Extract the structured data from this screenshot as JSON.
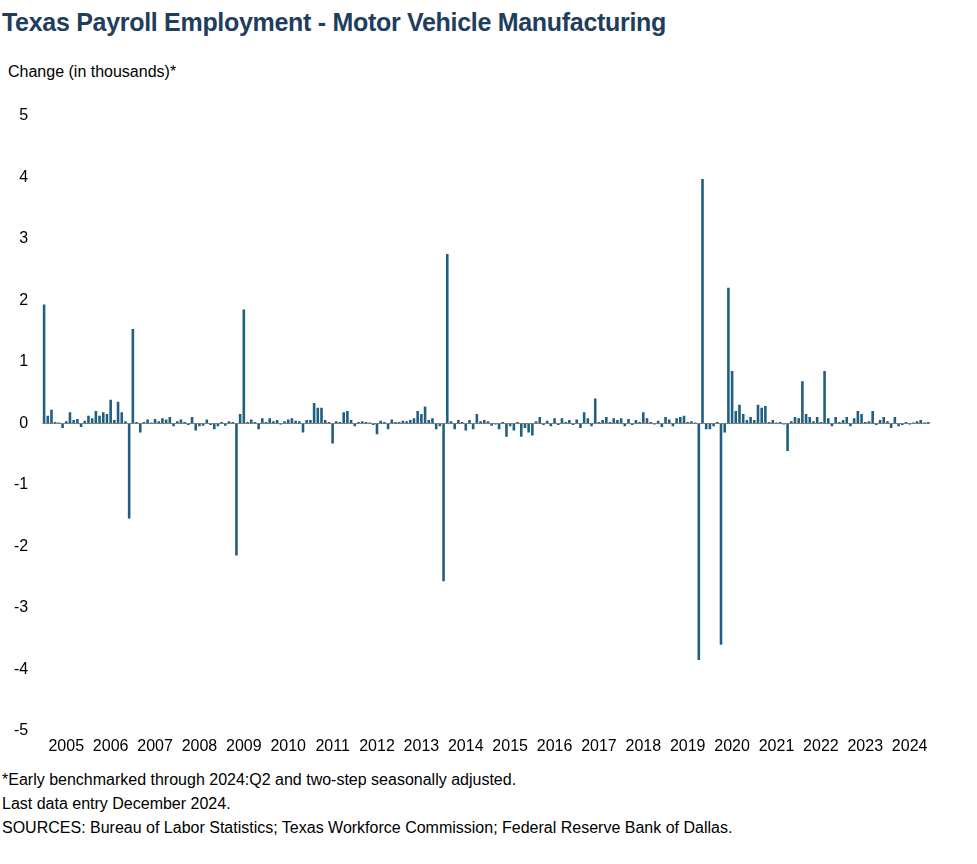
{
  "chart_data": {
    "type": "bar",
    "title": "Texas Payroll Employment - Motor Vehicle Manufacturing",
    "ylabel": "Change (in thousands)*",
    "notes": [
      "*Early benchmarked through 2024:Q2 and two-step seasonally adjusted.",
      "Last data entry December 2024.",
      "SOURCES: Bureau of Labor Statistics; Texas Workforce Commission; Federal Reserve Bank of Dallas."
    ],
    "color": "#1f5f82",
    "grid": false,
    "ylim": [
      -5,
      5
    ],
    "yticks": [
      -5,
      -4,
      -3,
      -2,
      -1,
      0,
      1,
      2,
      3,
      4,
      5
    ],
    "categories": [
      null,
      null,
      null,
      null,
      null,
      null,
      "2005",
      null,
      null,
      null,
      null,
      null,
      null,
      null,
      null,
      null,
      null,
      null,
      "2006",
      null,
      null,
      null,
      null,
      null,
      null,
      null,
      null,
      null,
      null,
      null,
      "2007",
      null,
      null,
      null,
      null,
      null,
      null,
      null,
      null,
      null,
      null,
      null,
      "2008",
      null,
      null,
      null,
      null,
      null,
      null,
      null,
      null,
      null,
      null,
      null,
      "2009",
      null,
      null,
      null,
      null,
      null,
      null,
      null,
      null,
      null,
      null,
      null,
      "2010",
      null,
      null,
      null,
      null,
      null,
      null,
      null,
      null,
      null,
      null,
      null,
      "2011",
      null,
      null,
      null,
      null,
      null,
      null,
      null,
      null,
      null,
      null,
      null,
      "2012",
      null,
      null,
      null,
      null,
      null,
      null,
      null,
      null,
      null,
      null,
      null,
      "2013",
      null,
      null,
      null,
      null,
      null,
      null,
      null,
      null,
      null,
      null,
      null,
      "2014",
      null,
      null,
      null,
      null,
      null,
      null,
      null,
      null,
      null,
      null,
      null,
      "2015",
      null,
      null,
      null,
      null,
      null,
      null,
      null,
      null,
      null,
      null,
      null,
      "2016",
      null,
      null,
      null,
      null,
      null,
      null,
      null,
      null,
      null,
      null,
      null,
      "2017",
      null,
      null,
      null,
      null,
      null,
      null,
      null,
      null,
      null,
      null,
      null,
      "2018",
      null,
      null,
      null,
      null,
      null,
      null,
      null,
      null,
      null,
      null,
      null,
      "2019",
      null,
      null,
      null,
      null,
      null,
      null,
      null,
      null,
      null,
      null,
      null,
      "2020",
      null,
      null,
      null,
      null,
      null,
      null,
      null,
      null,
      null,
      null,
      null,
      "2021",
      null,
      null,
      null,
      null,
      null,
      null,
      null,
      null,
      null,
      null,
      null,
      "2022",
      null,
      null,
      null,
      null,
      null,
      null,
      null,
      null,
      null,
      null,
      null,
      "2023",
      null,
      null,
      null,
      null,
      null,
      null,
      null,
      null,
      null,
      null,
      null,
      "2024",
      null,
      null,
      null,
      null,
      null
    ],
    "values": [
      1.93,
      0.12,
      0.22,
      0.02,
      0.01,
      -0.08,
      0.03,
      0.18,
      0.05,
      0.07,
      -0.06,
      0.04,
      0.12,
      0.08,
      0.2,
      0.12,
      0.18,
      0.15,
      0.38,
      0.05,
      0.35,
      0.18,
      0.03,
      -1.55,
      1.53,
      0.02,
      -0.15,
      0.02,
      0.06,
      0.01,
      0.07,
      0.03,
      0.08,
      0.06,
      0.1,
      -0.05,
      0.03,
      0.06,
      0.02,
      -0.03,
      0.1,
      -0.12,
      -0.05,
      -0.04,
      0.06,
      -0.03,
      -0.1,
      -0.05,
      0.02,
      -0.04,
      0.03,
      0.02,
      -2.15,
      0.15,
      1.85,
      0.02,
      0.06,
      0.02,
      -0.1,
      0.08,
      0.02,
      0.08,
      0.03,
      0.05,
      -0.02,
      0.03,
      0.06,
      0.08,
      0.04,
      0.03,
      -0.15,
      0.05,
      0.05,
      0.33,
      0.25,
      0.25,
      0.05,
      0.02,
      -0.33,
      0.03,
      0.02,
      0.18,
      0.2,
      0.05,
      -0.05,
      0.02,
      0.03,
      0.02,
      0.01,
      -0.03,
      -0.18,
      0.04,
      0.02,
      -0.1,
      0.06,
      0.02,
      0.02,
      0.04,
      0.03,
      0.05,
      0.08,
      0.2,
      0.15,
      0.27,
      0.05,
      0.08,
      -0.1,
      -0.05,
      -2.57,
      2.75,
      0.03,
      -0.1,
      0.05,
      0.02,
      -0.12,
      0.05,
      -0.1,
      0.15,
      0.03,
      0.05,
      0.03,
      -0.04,
      -0.02,
      -0.1,
      0.02,
      -0.22,
      -0.05,
      -0.12,
      0.02,
      -0.22,
      -0.08,
      -0.15,
      -0.2,
      0.03,
      0.1,
      -0.03,
      0.04,
      -0.05,
      0.08,
      -0.03,
      0.08,
      0.02,
      0.05,
      -0.03,
      0.06,
      -0.08,
      0.18,
      0.08,
      -0.05,
      0.4,
      0.02,
      0.05,
      0.1,
      0.02,
      0.08,
      0.05,
      0.08,
      -0.05,
      0.07,
      -0.03,
      0.05,
      0.02,
      0.18,
      0.08,
      0.02,
      -0.02,
      0.04,
      -0.06,
      0.1,
      0.06,
      -0.05,
      0.08,
      0.1,
      0.12,
      0.02,
      0.03,
      0.01,
      -3.85,
      3.97,
      -0.1,
      -0.1,
      -0.05,
      0.02,
      -3.6,
      -0.15,
      2.2,
      0.85,
      0.2,
      0.3,
      0.15,
      0.05,
      0.1,
      0.05,
      0.3,
      0.25,
      0.28,
      0.02,
      0.05,
      0.01,
      0.02,
      -0.02,
      -0.45,
      0.03,
      0.1,
      0.08,
      0.68,
      0.15,
      0.1,
      0.03,
      0.1,
      0.02,
      0.85,
      0.08,
      -0.05,
      0.1,
      0.02,
      0.05,
      0.1,
      -0.05,
      0.08,
      0.2,
      0.15,
      0.02,
      0.03,
      0.2,
      -0.03,
      0.05,
      0.1,
      0.03,
      -0.08,
      0.1,
      -0.05,
      -0.03,
      0.02,
      -0.02,
      0.01,
      0.03,
      0.05,
      0.01,
      0.02
    ]
  }
}
